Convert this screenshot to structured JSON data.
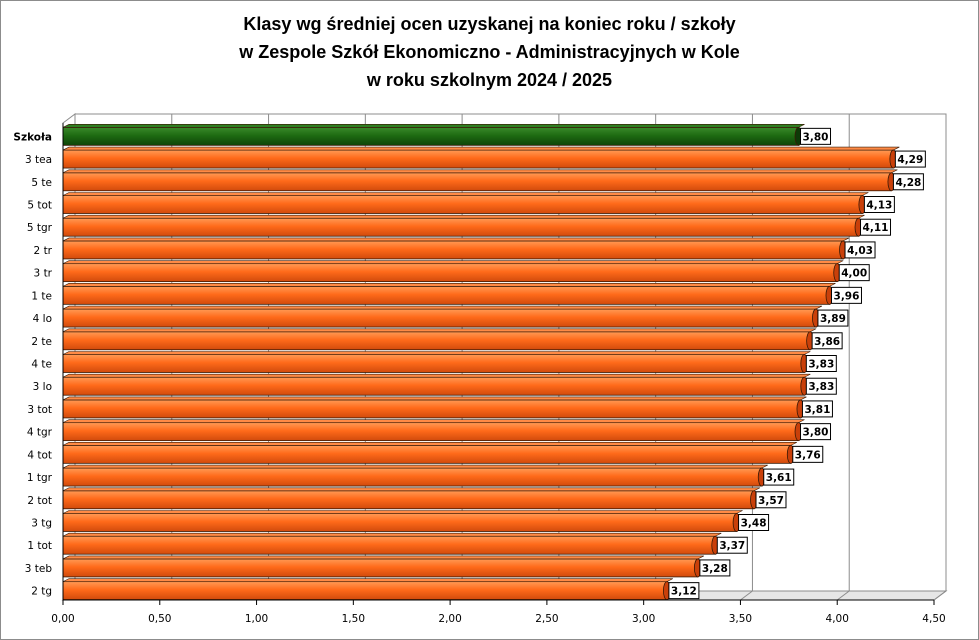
{
  "chart_data": {
    "type": "bar",
    "orientation": "horizontal",
    "title": [
      "Klasy wg średniej ocen uzyskanej na koniec roku / szkoły",
      "w Zespole Szkół Ekonomiczno - Administracyjnych w Kole",
      "w roku szkolnym 2024 / 2025"
    ],
    "categories": [
      "Szkoła",
      "3 tea",
      "5 te",
      "5 tot",
      "5 tgr",
      "2 tr",
      "3 tr",
      "1 te",
      "4 lo",
      "2 te",
      "4 te",
      "3 lo",
      "3 tot",
      "4 tgr",
      "4 tot",
      "1 tgr",
      "2 tot",
      "3 tg",
      "1 tot",
      "3 teb",
      "2 tg"
    ],
    "values": [
      3.8,
      4.29,
      4.28,
      4.13,
      4.11,
      4.03,
      4.0,
      3.96,
      3.89,
      3.86,
      3.83,
      3.83,
      3.81,
      3.8,
      3.76,
      3.61,
      3.57,
      3.48,
      3.37,
      3.28,
      3.12
    ],
    "data_labels": [
      "3,80",
      "4,29",
      "4,28",
      "4,13",
      "4,11",
      "4,03",
      "4,00",
      "3,96",
      "3,89",
      "3,86",
      "3,83",
      "3,83",
      "3,81",
      "3,80",
      "3,76",
      "3,61",
      "3,57",
      "3,48",
      "3,37",
      "3,28",
      "3,12"
    ],
    "xlim": [
      0,
      4.5
    ],
    "xticks": [
      0,
      0.5,
      1,
      1.5,
      2,
      2.5,
      3,
      3.5,
      4,
      4.5
    ],
    "xtick_labels": [
      "0,00",
      "0,50",
      "1,00",
      "1,50",
      "2,00",
      "2,50",
      "3,00",
      "3,50",
      "4,00",
      "4,50"
    ],
    "grid": true,
    "xlabel": "",
    "ylabel": "",
    "colors": {
      "highlight": "#1e6b12",
      "highlight_dark": "#0d3a07",
      "bar": "#ff6a1a",
      "bar_dark": "#c9400a",
      "grid": "#8c8c8c",
      "wall": "#c0c0c0"
    }
  }
}
